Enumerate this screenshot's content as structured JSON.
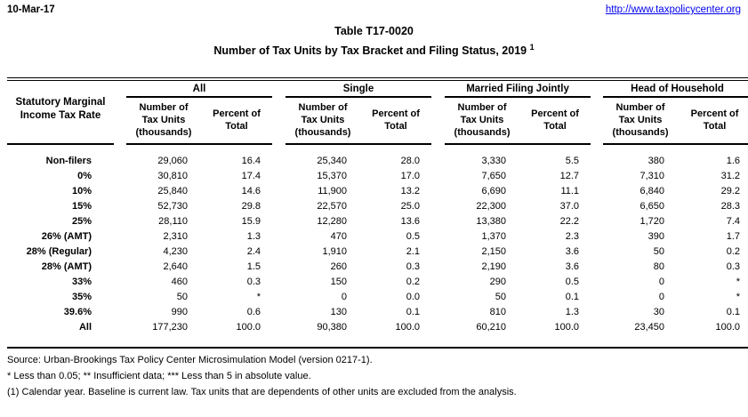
{
  "page": {
    "date": "10-Mar-17",
    "url": "http://www.taxpolicycenter.org",
    "title_line1": "Table T17-0020",
    "title_line2": "Number of Tax Units by Tax Bracket and Filing Status, 2019",
    "title_superscript": "1"
  },
  "table": {
    "stub_header": "Statutory Marginal Income Tax Rate",
    "groups": [
      "All",
      "Single",
      "Married Filing Jointly",
      "Head of Household"
    ],
    "sub_headers": {
      "units": "Number of Tax Units (thousands)",
      "percent": "Percent of Total"
    },
    "rows": [
      {
        "label": "Non-filers",
        "cells": [
          "29,060",
          "16.4",
          "25,340",
          "28.0",
          "3,330",
          "5.5",
          "380",
          "1.6"
        ]
      },
      {
        "label": "0%",
        "cells": [
          "30,810",
          "17.4",
          "15,370",
          "17.0",
          "7,650",
          "12.7",
          "7,310",
          "31.2"
        ]
      },
      {
        "label": "10%",
        "cells": [
          "25,840",
          "14.6",
          "11,900",
          "13.2",
          "6,690",
          "11.1",
          "6,840",
          "29.2"
        ]
      },
      {
        "label": "15%",
        "cells": [
          "52,730",
          "29.8",
          "22,570",
          "25.0",
          "22,300",
          "37.0",
          "6,650",
          "28.3"
        ]
      },
      {
        "label": "25%",
        "cells": [
          "28,110",
          "15.9",
          "12,280",
          "13.6",
          "13,380",
          "22.2",
          "1,720",
          "7.4"
        ]
      },
      {
        "label": "26% (AMT)",
        "cells": [
          "2,310",
          "1.3",
          "470",
          "0.5",
          "1,370",
          "2.3",
          "390",
          "1.7"
        ]
      },
      {
        "label": "28% (Regular)",
        "cells": [
          "4,230",
          "2.4",
          "1,910",
          "2.1",
          "2,150",
          "3.6",
          "50",
          "0.2"
        ]
      },
      {
        "label": "28% (AMT)",
        "cells": [
          "2,640",
          "1.5",
          "260",
          "0.3",
          "2,190",
          "3.6",
          "80",
          "0.3"
        ]
      },
      {
        "label": "33%",
        "cells": [
          "460",
          "0.3",
          "150",
          "0.2",
          "290",
          "0.5",
          "0",
          "*"
        ]
      },
      {
        "label": "35%",
        "cells": [
          "50",
          "*",
          "0",
          "0.0",
          "50",
          "0.1",
          "0",
          "*"
        ]
      },
      {
        "label": "39.6%",
        "cells": [
          "990",
          "0.6",
          "130",
          "0.1",
          "810",
          "1.3",
          "30",
          "0.1"
        ]
      },
      {
        "label": "All",
        "cells": [
          "177,230",
          "100.0",
          "90,380",
          "100.0",
          "60,210",
          "100.0",
          "23,450",
          "100.0"
        ]
      }
    ]
  },
  "notes": [
    "Source: Urban-Brookings Tax Policy Center Microsimulation Model (version 0217-1).",
    "* Less than 0.05; ** Insufficient data; *** Less than 5 in absolute value.",
    "(1) Calendar year. Baseline is current law. Tax units that are dependents of other units are excluded from the analysis."
  ]
}
